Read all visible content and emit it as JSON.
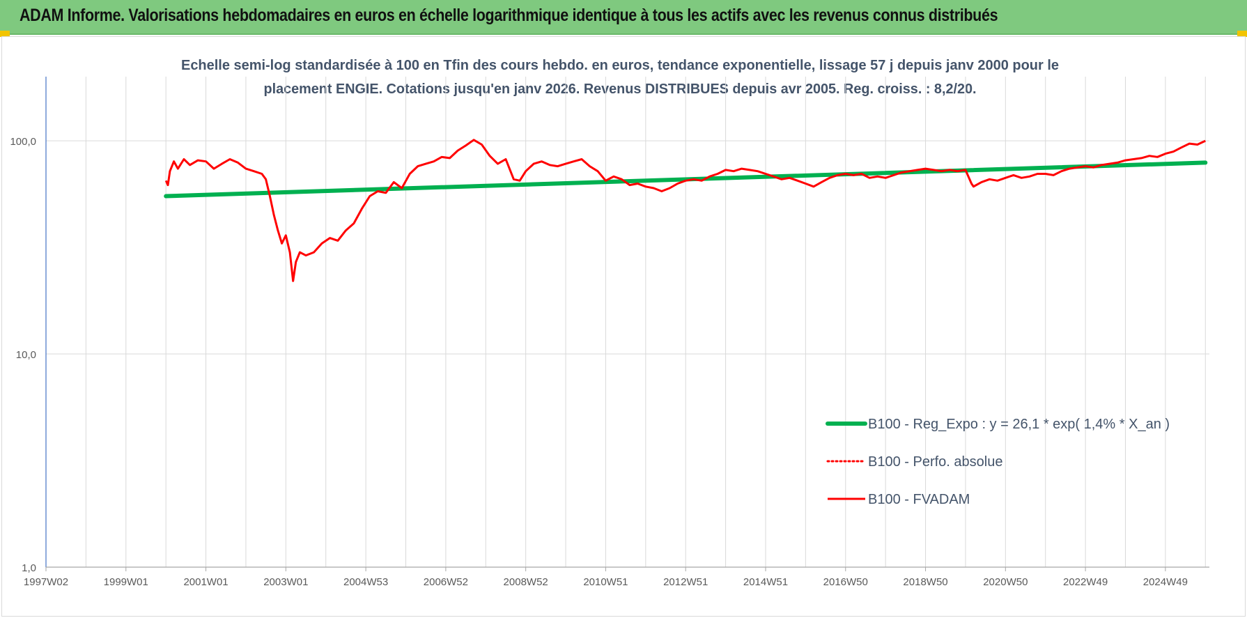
{
  "banner": {
    "title": "ADAM Informe. Valorisations hebdomadaires en euros en échelle logarithmique identique à tous les actifs avec les revenus connus distribués"
  },
  "colors": {
    "banner_bg": "#7fc97f",
    "corner": "#f2c400",
    "title_text": "#44546a",
    "trend": "#00b050",
    "fvadam": "#ff0000",
    "grid": "#d9d9d9"
  },
  "chart_data": {
    "type": "line",
    "title_line1": "Echelle semi-log standardisée à 100 en Tfin des cours hebdo. en euros, tendance exponentielle, lissage 57 j depuis janv 2000 pour le",
    "title_line2": "placement ENGIE. Cotations jusqu'en janv 2026. Revenus DISTRIBUES depuis avr 2005. Reg. croiss. : 8,2/20.",
    "y_scale": "log",
    "ylim": [
      1,
      200
    ],
    "y_ticks": [
      {
        "value": 1,
        "label": "1,0"
      },
      {
        "value": 10,
        "label": "10,0"
      },
      {
        "value": 100,
        "label": "100,0"
      }
    ],
    "xlim": [
      1997.0,
      2026.1
    ],
    "x_ticks": [
      {
        "value": 1997.0,
        "label": "1997W02"
      },
      {
        "value": 1999.0,
        "label": "1999W01"
      },
      {
        "value": 2001.0,
        "label": "2001W01"
      },
      {
        "value": 2003.0,
        "label": "2003W01"
      },
      {
        "value": 2005.0,
        "label": "2004W53"
      },
      {
        "value": 2007.0,
        "label": "2006W52"
      },
      {
        "value": 2009.0,
        "label": "2008W52"
      },
      {
        "value": 2011.0,
        "label": "2010W51"
      },
      {
        "value": 2013.0,
        "label": "2012W51"
      },
      {
        "value": 2015.0,
        "label": "2014W51"
      },
      {
        "value": 2017.0,
        "label": "2016W50"
      },
      {
        "value": 2019.0,
        "label": "2018W50"
      },
      {
        "value": 2021.0,
        "label": "2020W50"
      },
      {
        "value": 2023.0,
        "label": "2022W49"
      },
      {
        "value": 2025.0,
        "label": "2024W49"
      }
    ],
    "grid": true,
    "legend_position": "right-middle",
    "series": [
      {
        "name": "B100 - Reg_Expo : y = 26,1 * exp( 1,4% *  X_an )",
        "style": "solid-thick",
        "color": "#00b050",
        "x": [
          2000.0,
          2026.0
        ],
        "y": [
          55.0,
          79.0
        ]
      },
      {
        "name": "B100 - Perfo. absolue",
        "style": "dotted",
        "color": "#ff0000",
        "x": [],
        "y": []
      },
      {
        "name": "B100 - FVADAM",
        "style": "solid",
        "color": "#ff0000",
        "x": [
          2000.0,
          2000.05,
          2000.1,
          2000.2,
          2000.3,
          2000.45,
          2000.6,
          2000.8,
          2001.0,
          2001.2,
          2001.4,
          2001.6,
          2001.8,
          2002.0,
          2002.2,
          2002.4,
          2002.5,
          2002.6,
          2002.7,
          2002.8,
          2002.9,
          2003.0,
          2003.1,
          2003.18,
          2003.25,
          2003.35,
          2003.5,
          2003.7,
          2003.9,
          2004.1,
          2004.3,
          2004.5,
          2004.7,
          2004.9,
          2005.1,
          2005.3,
          2005.5,
          2005.7,
          2005.9,
          2006.1,
          2006.3,
          2006.5,
          2006.7,
          2006.9,
          2007.1,
          2007.3,
          2007.5,
          2007.7,
          2007.9,
          2008.1,
          2008.3,
          2008.5,
          2008.7,
          2008.85,
          2009.0,
          2009.2,
          2009.4,
          2009.6,
          2009.8,
          2010.0,
          2010.2,
          2010.4,
          2010.6,
          2010.8,
          2011.0,
          2011.2,
          2011.4,
          2011.6,
          2011.8,
          2012.0,
          2012.2,
          2012.4,
          2012.6,
          2012.8,
          2013.0,
          2013.2,
          2013.4,
          2013.6,
          2013.8,
          2014.0,
          2014.2,
          2014.4,
          2014.6,
          2014.8,
          2015.0,
          2015.2,
          2015.4,
          2015.6,
          2015.8,
          2016.0,
          2016.2,
          2016.4,
          2016.6,
          2016.8,
          2017.0,
          2017.2,
          2017.4,
          2017.6,
          2017.8,
          2018.0,
          2018.2,
          2018.4,
          2018.6,
          2018.8,
          2019.0,
          2019.2,
          2019.4,
          2019.6,
          2019.8,
          2020.0,
          2020.15,
          2020.2,
          2020.4,
          2020.6,
          2020.8,
          2021.0,
          2021.2,
          2021.4,
          2021.6,
          2021.8,
          2022.0,
          2022.2,
          2022.4,
          2022.6,
          2022.8,
          2023.0,
          2023.2,
          2023.4,
          2023.6,
          2023.8,
          2024.0,
          2024.2,
          2024.4,
          2024.6,
          2024.8,
          2025.0,
          2025.2,
          2025.4,
          2025.6,
          2025.8,
          2026.0
        ],
        "y": [
          65,
          62,
          72,
          80,
          74,
          82,
          77,
          81,
          80,
          74,
          78,
          82,
          79,
          74,
          72,
          70,
          66,
          55,
          45,
          38,
          33,
          36,
          30,
          22,
          27,
          30,
          29,
          30,
          33,
          35,
          34,
          38,
          41,
          48,
          55,
          58,
          57,
          64,
          60,
          70,
          76,
          78,
          80,
          84,
          83,
          90,
          95,
          101,
          96,
          85,
          78,
          82,
          66,
          65,
          72,
          78,
          80,
          77,
          76,
          78,
          80,
          82,
          76,
          72,
          65,
          68,
          66,
          62,
          63,
          61,
          60,
          58,
          60,
          63,
          65,
          66,
          65,
          68,
          70,
          73,
          72,
          74,
          73,
          72,
          70,
          68,
          66,
          67,
          65,
          63,
          61,
          64,
          67,
          69,
          70,
          69,
          70,
          67,
          68,
          67,
          69,
          71,
          72,
          73,
          74,
          73,
          72,
          73,
          72,
          73,
          63,
          61,
          64,
          66,
          65,
          67,
          69,
          67,
          68,
          70,
          70,
          69,
          72,
          74,
          75,
          76,
          75,
          77,
          78,
          79,
          81,
          82,
          83,
          85,
          84,
          87,
          89,
          93,
          97,
          96,
          100
        ]
      }
    ]
  }
}
